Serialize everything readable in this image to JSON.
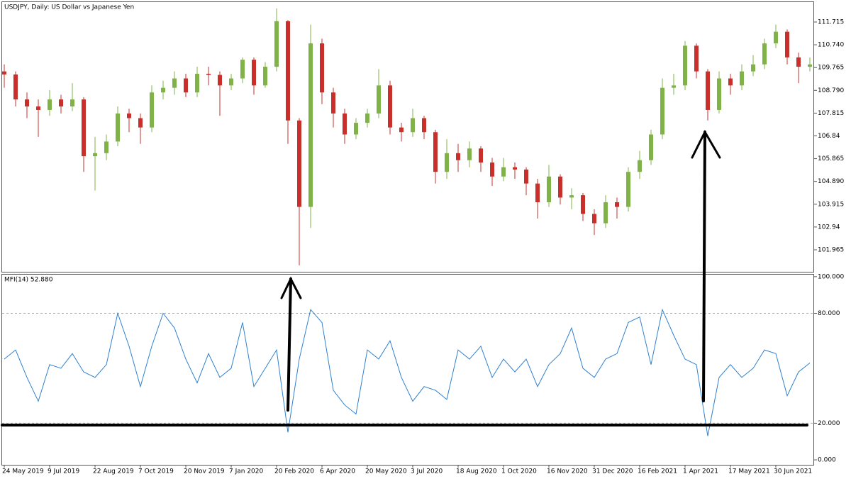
{
  "chart_data": [
    {
      "type": "candlestick",
      "title": "USDJPY, Daily:  US Dollar vs Japanese Yen",
      "categories": [
        "24 May 2019",
        null,
        null,
        null,
        "9 Jul 2019",
        null,
        null,
        null,
        "22 Aug 2019",
        null,
        null,
        null,
        "7 Oct 2019",
        null,
        null,
        null,
        "20 Nov 2019",
        null,
        null,
        null,
        "7 Jan 2020",
        null,
        null,
        null,
        "20 Feb 2020",
        null,
        null,
        null,
        "6 Apr 2020",
        null,
        null,
        null,
        "20 May 2020",
        null,
        null,
        null,
        "3 Jul 2020",
        null,
        null,
        null,
        "18 Aug 2020",
        null,
        null,
        null,
        "1 Oct 2020",
        null,
        null,
        null,
        "16 Nov 2020",
        null,
        null,
        null,
        "31 Dec 2020",
        null,
        null,
        null,
        "16 Feb 2021",
        null,
        null,
        null,
        "1 Apr 2021",
        null,
        null,
        null,
        "17 May 2021",
        null,
        null,
        null,
        "30 Jun 2021",
        null,
        null,
        null
      ],
      "open": [
        109.6,
        109.47,
        108.4,
        108.1,
        107.95,
        108.4,
        108.1,
        108.4,
        105.97,
        106.1,
        106.6,
        107.8,
        107.6,
        107.2,
        108.7,
        108.9,
        109.3,
        108.7,
        109.5,
        109.45,
        109.0,
        109.3,
        110.1,
        109.0,
        109.8,
        111.75,
        107.5,
        103.8,
        110.8,
        108.7,
        107.8,
        106.9,
        107.4,
        107.8,
        109.0,
        107.2,
        107.0,
        107.6,
        107.0,
        105.3,
        106.1,
        105.8,
        106.3,
        105.7,
        105.1,
        105.5,
        105.4,
        104.8,
        104.0,
        105.1,
        104.2,
        104.3,
        103.5,
        103.1,
        104.0,
        103.8,
        105.3,
        105.8,
        106.9,
        108.9,
        109.0,
        110.7,
        109.6,
        107.95,
        109.3,
        109.0,
        109.6,
        109.9,
        110.8,
        111.3,
        110.2,
        109.8
      ],
      "high": [
        109.9,
        109.6,
        108.7,
        108.4,
        108.8,
        108.6,
        109.1,
        108.5,
        106.8,
        106.9,
        108.1,
        108.0,
        107.8,
        109.0,
        109.2,
        109.6,
        109.5,
        109.8,
        109.8,
        109.6,
        109.5,
        110.2,
        110.2,
        110.0,
        112.3,
        111.8,
        107.6,
        111.6,
        111.0,
        108.9,
        108.0,
        107.6,
        108.0,
        109.7,
        109.2,
        107.4,
        108.0,
        107.7,
        107.1,
        106.7,
        106.5,
        106.6,
        106.4,
        105.9,
        105.9,
        105.7,
        105.5,
        105.0,
        105.6,
        105.2,
        104.6,
        104.4,
        103.7,
        104.3,
        104.2,
        105.5,
        106.2,
        107.1,
        109.3,
        109.5,
        110.9,
        110.8,
        109.7,
        109.6,
        109.5,
        109.9,
        110.3,
        111.0,
        111.6,
        111.4,
        110.4,
        110.2
      ],
      "low": [
        108.9,
        108.1,
        107.6,
        106.8,
        107.7,
        107.8,
        107.9,
        105.3,
        104.5,
        105.8,
        106.4,
        107.0,
        106.5,
        107.0,
        108.4,
        108.6,
        108.5,
        108.5,
        109.0,
        107.7,
        108.8,
        109.1,
        108.6,
        108.9,
        109.6,
        106.5,
        101.3,
        102.9,
        108.2,
        107.2,
        106.5,
        106.7,
        107.2,
        107.6,
        106.9,
        106.6,
        106.8,
        106.7,
        104.8,
        105.0,
        105.3,
        105.5,
        105.3,
        104.7,
        104.9,
        105.0,
        104.3,
        103.3,
        103.8,
        103.9,
        103.7,
        103.2,
        102.6,
        102.9,
        103.3,
        103.6,
        105.0,
        105.6,
        106.7,
        108.6,
        108.8,
        109.3,
        107.5,
        107.8,
        108.6,
        108.8,
        109.4,
        109.7,
        110.6,
        109.9,
        109.1,
        109.6
      ],
      "close": [
        109.47,
        108.4,
        108.1,
        107.95,
        108.4,
        108.1,
        108.4,
        105.97,
        106.1,
        106.6,
        107.8,
        107.6,
        107.2,
        108.7,
        108.9,
        109.3,
        108.7,
        109.5,
        109.45,
        109.0,
        109.3,
        110.1,
        109.0,
        109.8,
        111.75,
        107.5,
        103.8,
        110.8,
        108.7,
        107.8,
        106.9,
        107.4,
        107.8,
        109.0,
        107.2,
        107.0,
        107.6,
        107.0,
        105.3,
        106.1,
        105.8,
        106.3,
        105.7,
        105.1,
        105.5,
        105.4,
        104.8,
        104.0,
        105.1,
        104.2,
        104.3,
        103.5,
        103.1,
        104.0,
        103.8,
        105.3,
        105.8,
        106.9,
        108.9,
        109.0,
        110.7,
        109.6,
        107.95,
        109.3,
        109.0,
        109.6,
        109.9,
        110.8,
        111.3,
        110.2,
        109.8,
        109.9
      ],
      "up_color": "#7fb347",
      "down_color": "#c9302c",
      "ylim": [
        101.023,
        112.596
      ],
      "yticks": [
        101.965,
        102.94,
        103.915,
        {
          "value": 104.89,
          "label": "104.890"
        },
        105.865,
        106.84,
        107.815,
        {
          "value": 108.79,
          "label": "108.790"
        },
        109.765,
        {
          "value": 110.74,
          "label": "110.740"
        },
        111.715
      ]
    },
    {
      "type": "line",
      "title": "MFI(14) 52.880",
      "color": "#2f80d0",
      "values": [
        55,
        60,
        45,
        32,
        52,
        50,
        58,
        48,
        45,
        52,
        80,
        62,
        40,
        62,
        80,
        72,
        55,
        42,
        58,
        45,
        50,
        75,
        40,
        50,
        60,
        15,
        55,
        82,
        75,
        38,
        30,
        25,
        60,
        55,
        65,
        45,
        32,
        40,
        38,
        33,
        60,
        55,
        62,
        45,
        55,
        48,
        55,
        40,
        52,
        58,
        72,
        50,
        45,
        55,
        58,
        75,
        78,
        52,
        82,
        68,
        55,
        52,
        13,
        45,
        52,
        45,
        50,
        60,
        58,
        35,
        48,
        52.88
      ],
      "levels": [
        20,
        80
      ],
      "ylim": [
        -2.7,
        101.5
      ],
      "yticks": [
        {
          "value": 0,
          "label": "0.000"
        },
        {
          "value": 20,
          "label": "20.000"
        },
        {
          "value": 80,
          "label": "80.000"
        },
        {
          "value": 100,
          "label": "100.000"
        }
      ]
    }
  ]
}
